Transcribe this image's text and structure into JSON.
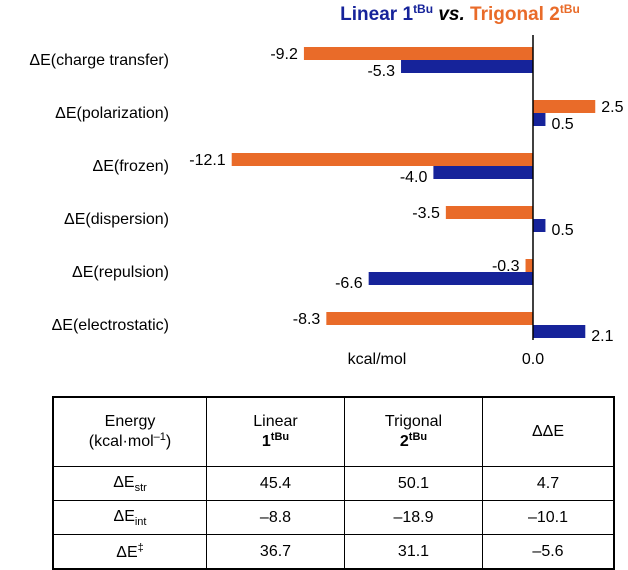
{
  "legend": {
    "series1_name": "Linear",
    "series1_num": "1",
    "series1_sup": "tBu",
    "vs": "vs.",
    "series2_name": "Trigonal",
    "series2_num": "2",
    "series2_sup": "tBu",
    "color_series1": "#16239a",
    "color_series2": "#e96b29"
  },
  "chart_data": {
    "type": "bar",
    "orientation": "horizontal",
    "categories": [
      "ΔE(charge transfer)",
      "ΔE(polarization)",
      "ΔE(frozen)",
      "ΔE(dispersion)",
      "ΔE(repulsion)",
      "ΔE(electrostatic)"
    ],
    "series": [
      {
        "name": "Linear 1tBu",
        "color": "#16239a",
        "values": [
          -5.3,
          0.5,
          -4.0,
          0.5,
          -6.6,
          2.1
        ]
      },
      {
        "name": "Trigonal 2tBu",
        "color": "#e96b29",
        "values": [
          -9.2,
          2.5,
          -12.1,
          -3.5,
          -0.3,
          -8.3
        ]
      }
    ],
    "value_labels_series1": [
      "-5.3",
      "0.5",
      "-4.0",
      "0.5",
      "-6.6",
      "2.1"
    ],
    "value_labels_series2": [
      "-9.2",
      "2.5",
      "-12.1",
      "-3.5",
      "-0.3",
      "-8.3"
    ],
    "xlabel": "kcal/mol",
    "zero_label": "0.0",
    "xlim": [
      -12.1,
      2.5
    ],
    "grid": false
  },
  "table": {
    "header": {
      "energy": "Energy",
      "units_pre": "(kcal·mol",
      "units_sup": "–1",
      "units_post": ")",
      "linear": "Linear",
      "linear_num": "1",
      "linear_sup": "tBu",
      "trigonal": "Trigonal",
      "trigonal_num": "2",
      "trigonal_sup": "tBu",
      "ddE": "ΔΔE"
    },
    "rows": [
      {
        "label_main": "ΔE",
        "label_sub": "str",
        "label_sup": "",
        "linear": "45.4",
        "trigonal": "50.1",
        "ddE": "4.7"
      },
      {
        "label_main": "ΔE",
        "label_sub": "int",
        "label_sup": "",
        "linear": "–8.8",
        "trigonal": "–18.9",
        "ddE": "–10.1"
      },
      {
        "label_main": "ΔE",
        "label_sub": "",
        "label_sup": "‡",
        "linear": "36.7",
        "trigonal": "31.1",
        "ddE": "–5.6"
      }
    ]
  }
}
